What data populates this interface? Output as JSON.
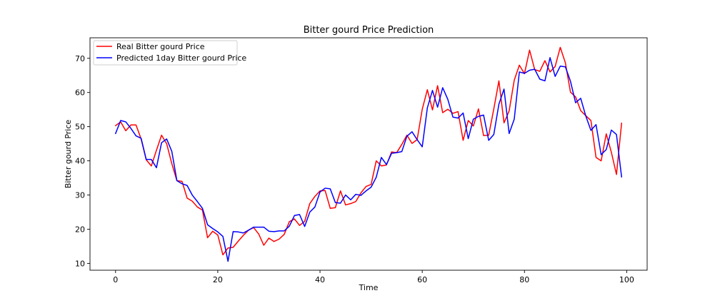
{
  "chart_data": {
    "type": "line",
    "title": "Bitter gourd Price Prediction",
    "xlabel": "Time",
    "ylabel": "Bitter gourd Price",
    "xlim": [
      -5,
      104
    ],
    "ylim": [
      8,
      76
    ],
    "xticks": [
      0,
      20,
      40,
      60,
      80,
      100
    ],
    "yticks": [
      10,
      20,
      30,
      40,
      50,
      60,
      70
    ],
    "grid": false,
    "legend_position": "upper-left",
    "series": [
      {
        "name": "Real Bitter gourd Price",
        "color": "#ff0000",
        "values": [
          50.3,
          51.4,
          48.8,
          50.5,
          50.5,
          46.4,
          40.3,
          38.5,
          43.1,
          47.5,
          45.0,
          39.2,
          34.2,
          34.0,
          29.1,
          28.2,
          26.5,
          25.6,
          17.5,
          19.4,
          18.3,
          12.5,
          14.5,
          14.7,
          16.5,
          18.2,
          19.7,
          20.5,
          18.6,
          15.3,
          17.4,
          16.4,
          17.1,
          18.5,
          22.2,
          23.0,
          21.1,
          22.3,
          27.5,
          29.6,
          31.2,
          31.3,
          26.1,
          26.3,
          31.2,
          27.1,
          27.5,
          28.1,
          30.6,
          32.5,
          33.1,
          40.0,
          38.5,
          38.8,
          42.6,
          42.4,
          44.8,
          47.5,
          45.1,
          46.2,
          55.1,
          60.8,
          54.9,
          62.0,
          54.1,
          55.1,
          53.9,
          54.4,
          46.0,
          51.8,
          50.2,
          55.2,
          47.4,
          47.5,
          55.2,
          63.4,
          51.1,
          54.6,
          63.6,
          68.0,
          65.5,
          72.4,
          66.7,
          66.2,
          69.3,
          66.0,
          67.6,
          73.2,
          68.7,
          60.1,
          58.7,
          54.7,
          53.2,
          51.8,
          41.0,
          40.0,
          47.9,
          42.5,
          36.0,
          51.0
        ]
      },
      {
        "name": "Predicted 1day Bitter gourd Price",
        "color": "#0000ff",
        "values": [
          48.0,
          51.8,
          51.4,
          49.5,
          47.3,
          46.6,
          40.4,
          40.4,
          38.0,
          45.3,
          46.4,
          42.8,
          34.2,
          33.3,
          32.8,
          30.0,
          28.1,
          26.1,
          21.3,
          20.2,
          19.2,
          17.9,
          10.6,
          19.3,
          19.2,
          18.9,
          19.7,
          20.6,
          20.6,
          20.6,
          19.4,
          19.3,
          19.5,
          19.5,
          20.9,
          24.0,
          24.3,
          20.8,
          25.0,
          26.5,
          30.9,
          32.0,
          31.8,
          27.8,
          27.6,
          30.0,
          28.6,
          30.2,
          29.9,
          31.2,
          32.3,
          35.2,
          41.0,
          38.9,
          42.2,
          42.4,
          42.7,
          47.2,
          48.5,
          46.2,
          44.1,
          55.5,
          60.6,
          55.7,
          61.4,
          58.0,
          52.8,
          52.5,
          54.0,
          46.5,
          52.2,
          53.0,
          53.4,
          46.0,
          47.7,
          56.6,
          61.0,
          48.0,
          52.2,
          66.0,
          65.6,
          66.5,
          66.8,
          63.9,
          63.4,
          70.2,
          64.7,
          67.7,
          67.5,
          63.3,
          57.0,
          58.3,
          53.1,
          48.9,
          50.6,
          41.8,
          43.3,
          49.0,
          47.7,
          35.3
        ]
      }
    ]
  }
}
